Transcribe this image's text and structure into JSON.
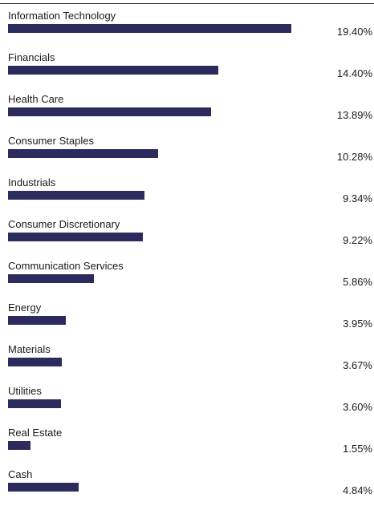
{
  "chart_data": {
    "type": "bar",
    "orientation": "horizontal",
    "categories": [
      "Information Technology",
      "Financials",
      "Health Care",
      "Consumer Staples",
      "Industrials",
      "Consumer Discretionary",
      "Communication Services",
      "Energy",
      "Materials",
      "Utilities",
      "Real Estate",
      "Cash"
    ],
    "values": [
      19.4,
      14.4,
      13.89,
      10.28,
      9.34,
      9.22,
      5.86,
      3.95,
      3.67,
      3.6,
      1.55,
      4.84
    ],
    "value_labels": [
      "19.40%",
      "14.40%",
      "13.89%",
      "10.28%",
      "9.34%",
      "9.22%",
      "5.86%",
      "3.95%",
      "3.67%",
      "3.60%",
      "1.55%",
      "4.84%"
    ],
    "xlim": [
      0,
      25
    ],
    "bar_color": "#2b2b5e",
    "grid": false,
    "legend": "none"
  }
}
